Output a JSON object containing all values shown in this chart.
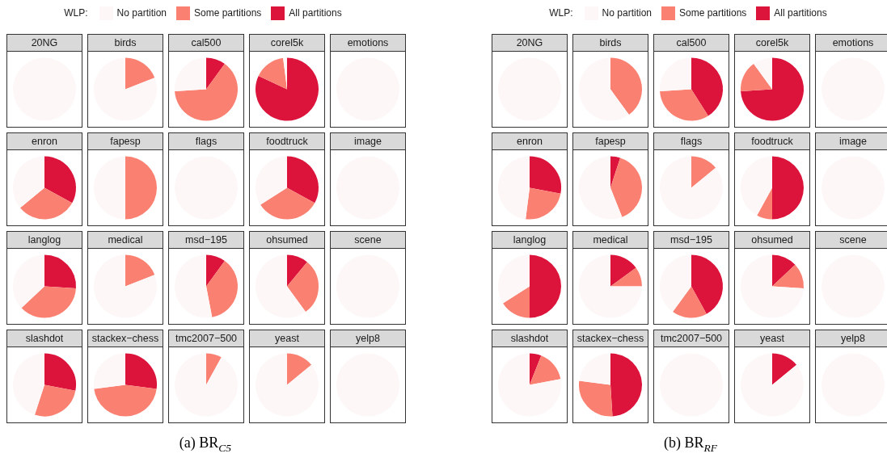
{
  "chart_data": [
    {
      "type": "pie",
      "title": "20NG",
      "legend": "top",
      "legend_title": "WLP:",
      "annotations": [
        "(a) BR$_{C5}$"
      ],
      "categories": [
        "No partition",
        "Some partitions",
        "All partitions"
      ],
      "values": [
        100,
        0,
        0
      ],
      "colors": [
        "#fdf7f7",
        "#fa8072",
        "#dc143c"
      ]
    },
    {
      "type": "pie",
      "title": "birds",
      "categories": [
        null,
        null,
        null
      ],
      "values": [
        81,
        19,
        0
      ],
      "colors": [
        "#fdf7f7",
        "#fa8072",
        "#dc143c"
      ]
    },
    {
      "type": "pie",
      "title": "cal500",
      "categories": [
        null,
        null,
        null
      ],
      "values": [
        26,
        64,
        10
      ],
      "colors": [
        "#fdf7f7",
        "#fa8072",
        "#dc143c"
      ]
    },
    {
      "type": "pie",
      "title": "corel5k",
      "categories": [
        null,
        null,
        null
      ],
      "values": [
        2,
        16,
        82
      ],
      "colors": [
        "#fdf7f7",
        "#fa8072",
        "#dc143c"
      ]
    },
    {
      "type": "pie",
      "title": "emotions",
      "categories": [
        null,
        null,
        null
      ],
      "values": [
        100,
        0,
        0
      ],
      "colors": [
        "#fdf7f7",
        "#fa8072",
        "#dc143c"
      ]
    },
    {
      "type": "pie",
      "title": "enron",
      "categories": [
        null,
        null,
        null
      ],
      "values": [
        36,
        31,
        33
      ],
      "colors": [
        "#fdf7f7",
        "#fa8072",
        "#dc143c"
      ]
    },
    {
      "type": "pie",
      "title": "fapesp",
      "categories": [
        null,
        null,
        null
      ],
      "values": [
        50,
        50,
        0
      ],
      "colors": [
        "#fdf7f7",
        "#fa8072",
        "#dc143c"
      ]
    },
    {
      "type": "pie",
      "title": "flags",
      "categories": [
        null,
        null,
        null
      ],
      "values": [
        100,
        0,
        0
      ],
      "colors": [
        "#fdf7f7",
        "#fa8072",
        "#dc143c"
      ]
    },
    {
      "type": "pie",
      "title": "foodtruck",
      "categories": [
        null,
        null,
        null
      ],
      "values": [
        34,
        33,
        33
      ],
      "colors": [
        "#fdf7f7",
        "#fa8072",
        "#dc143c"
      ]
    },
    {
      "type": "pie",
      "title": "image",
      "categories": [
        null,
        null,
        null
      ],
      "values": [
        100,
        0,
        0
      ],
      "colors": [
        "#fdf7f7",
        "#fa8072",
        "#dc143c"
      ]
    },
    {
      "type": "pie",
      "title": "langlog",
      "categories": [
        null,
        null,
        null
      ],
      "values": [
        37,
        37,
        26
      ],
      "colors": [
        "#fdf7f7",
        "#fa8072",
        "#dc143c"
      ]
    },
    {
      "type": "pie",
      "title": "medical",
      "categories": [
        null,
        null,
        null
      ],
      "values": [
        81,
        19,
        0
      ],
      "colors": [
        "#fdf7f7",
        "#fa8072",
        "#dc143c"
      ]
    },
    {
      "type": "pie",
      "title": "msd−195",
      "categories": [
        null,
        null,
        null
      ],
      "values": [
        53,
        37,
        10
      ],
      "colors": [
        "#fdf7f7",
        "#fa8072",
        "#dc143c"
      ]
    },
    {
      "type": "pie",
      "title": "ohsumed",
      "categories": [
        null,
        null,
        null
      ],
      "values": [
        60,
        29,
        11
      ],
      "colors": [
        "#fdf7f7",
        "#fa8072",
        "#dc143c"
      ]
    },
    {
      "type": "pie",
      "title": "scene",
      "categories": [
        null,
        null,
        null
      ],
      "values": [
        100,
        0,
        0
      ],
      "colors": [
        "#fdf7f7",
        "#fa8072",
        "#dc143c"
      ]
    },
    {
      "type": "pie",
      "title": "slashdot",
      "categories": [
        null,
        null,
        null
      ],
      "values": [
        45,
        27,
        28
      ],
      "colors": [
        "#fdf7f7",
        "#fa8072",
        "#dc143c"
      ]
    },
    {
      "type": "pie",
      "title": "stackex−chess",
      "categories": [
        null,
        null,
        null
      ],
      "values": [
        27,
        46,
        27
      ],
      "colors": [
        "#fdf7f7",
        "#fa8072",
        "#dc143c"
      ]
    },
    {
      "type": "pie",
      "title": "tmc2007−500",
      "categories": [
        null,
        null,
        null
      ],
      "values": [
        92,
        8,
        0
      ],
      "colors": [
        "#fdf7f7",
        "#fa8072",
        "#dc143c"
      ]
    },
    {
      "type": "pie",
      "title": "yeast",
      "categories": [
        null,
        null,
        null
      ],
      "values": [
        86,
        14,
        0
      ],
      "colors": [
        "#fdf7f7",
        "#fa8072",
        "#dc143c"
      ]
    },
    {
      "type": "pie",
      "title": "yelp8",
      "categories": [
        null,
        null,
        null
      ],
      "values": [
        100,
        0,
        0
      ],
      "colors": [
        "#fdf7f7",
        "#fa8072",
        "#dc143c"
      ]
    },
    {
      "type": "pie",
      "title": "20NG",
      "legend": "top",
      "legend_title": "WLP:",
      "annotations": [
        "(b) BR$_{RF}$"
      ],
      "categories": [
        "No partition",
        "Some partitions",
        "All partitions"
      ],
      "values": [
        100,
        0,
        0
      ],
      "colors": [
        "#fdf7f7",
        "#fa8072",
        "#dc143c"
      ]
    },
    {
      "type": "pie",
      "title": "birds",
      "categories": [
        null,
        null,
        null
      ],
      "values": [
        60,
        40,
        0
      ],
      "colors": [
        "#fdf7f7",
        "#fa8072",
        "#dc143c"
      ]
    },
    {
      "type": "pie",
      "title": "cal500",
      "categories": [
        null,
        null,
        null
      ],
      "values": [
        26,
        33,
        41
      ],
      "colors": [
        "#fdf7f7",
        "#fa8072",
        "#dc143c"
      ]
    },
    {
      "type": "pie",
      "title": "corel5k",
      "categories": [
        null,
        null,
        null
      ],
      "values": [
        10,
        16,
        74
      ],
      "colors": [
        "#fdf7f7",
        "#fa8072",
        "#dc143c"
      ]
    },
    {
      "type": "pie",
      "title": "emotions",
      "categories": [
        null,
        null,
        null
      ],
      "values": [
        100,
        0,
        0
      ],
      "colors": [
        "#fdf7f7",
        "#fa8072",
        "#dc143c"
      ]
    },
    {
      "type": "pie",
      "title": "enron",
      "categories": [
        null,
        null,
        null
      ],
      "values": [
        48,
        24,
        28
      ],
      "colors": [
        "#fdf7f7",
        "#fa8072",
        "#dc143c"
      ]
    },
    {
      "type": "pie",
      "title": "fapesp",
      "categories": [
        null,
        null,
        null
      ],
      "values": [
        56,
        39,
        5
      ],
      "colors": [
        "#fdf7f7",
        "#fa8072",
        "#dc143c"
      ]
    },
    {
      "type": "pie",
      "title": "flags",
      "categories": [
        null,
        null,
        null
      ],
      "values": [
        86,
        14,
        0
      ],
      "colors": [
        "#fdf7f7",
        "#fa8072",
        "#dc143c"
      ]
    },
    {
      "type": "pie",
      "title": "foodtruck",
      "categories": [
        null,
        null,
        null
      ],
      "values": [
        42,
        8,
        50
      ],
      "colors": [
        "#fdf7f7",
        "#fa8072",
        "#dc143c"
      ]
    },
    {
      "type": "pie",
      "title": "image",
      "categories": [
        null,
        null,
        null
      ],
      "values": [
        100,
        0,
        0
      ],
      "colors": [
        "#fdf7f7",
        "#fa8072",
        "#dc143c"
      ]
    },
    {
      "type": "pie",
      "title": "langlog",
      "categories": [
        null,
        null,
        null
      ],
      "values": [
        34,
        16,
        50
      ],
      "colors": [
        "#fdf7f7",
        "#fa8072",
        "#dc143c"
      ]
    },
    {
      "type": "pie",
      "title": "medical",
      "categories": [
        null,
        null,
        null
      ],
      "values": [
        75,
        10,
        15
      ],
      "colors": [
        "#fdf7f7",
        "#fa8072",
        "#dc143c"
      ]
    },
    {
      "type": "pie",
      "title": "msd−195",
      "categories": [
        null,
        null,
        null
      ],
      "values": [
        40,
        18,
        42
      ],
      "colors": [
        "#fdf7f7",
        "#fa8072",
        "#dc143c"
      ]
    },
    {
      "type": "pie",
      "title": "ohsumed",
      "categories": [
        null,
        null,
        null
      ],
      "values": [
        74,
        13,
        13
      ],
      "colors": [
        "#fdf7f7",
        "#fa8072",
        "#dc143c"
      ]
    },
    {
      "type": "pie",
      "title": "scene",
      "categories": [
        null,
        null,
        null
      ],
      "values": [
        100,
        0,
        0
      ],
      "colors": [
        "#fdf7f7",
        "#fa8072",
        "#dc143c"
      ]
    },
    {
      "type": "pie",
      "title": "slashdot",
      "categories": [
        null,
        null,
        null
      ],
      "values": [
        78,
        16,
        6
      ],
      "colors": [
        "#fdf7f7",
        "#fa8072",
        "#dc143c"
      ]
    },
    {
      "type": "pie",
      "title": "stackex−chess",
      "categories": [
        null,
        null,
        null
      ],
      "values": [
        23,
        28,
        49
      ],
      "colors": [
        "#fdf7f7",
        "#fa8072",
        "#dc143c"
      ]
    },
    {
      "type": "pie",
      "title": "tmc2007−500",
      "categories": [
        null,
        null,
        null
      ],
      "values": [
        100,
        0,
        0
      ],
      "colors": [
        "#fdf7f7",
        "#fa8072",
        "#dc143c"
      ]
    },
    {
      "type": "pie",
      "title": "yeast",
      "categories": [
        null,
        null,
        null
      ],
      "values": [
        86,
        0,
        14
      ],
      "colors": [
        "#fdf7f7",
        "#fa8072",
        "#dc143c"
      ]
    },
    {
      "type": "pie",
      "title": "yelp8",
      "categories": [
        null,
        null,
        null
      ],
      "values": [
        100,
        0,
        0
      ],
      "colors": [
        "#fdf7f7",
        "#fa8072",
        "#dc143c"
      ]
    }
  ]
}
